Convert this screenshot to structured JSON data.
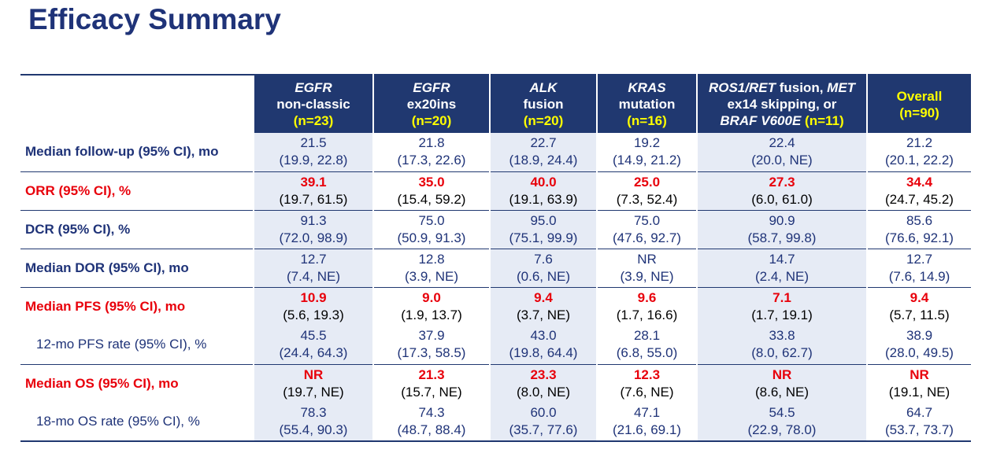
{
  "title": "Efficacy Summary",
  "columns": [
    {
      "lines": [
        {
          "t": "EGFR",
          "italic": true
        },
        {
          "t": "non-classic"
        }
      ],
      "n": "(n=23)"
    },
    {
      "lines": [
        {
          "t": "EGFR",
          "italic": true
        },
        {
          "t": "ex20ins"
        }
      ],
      "n": "(n=20)"
    },
    {
      "lines": [
        {
          "t": "ALK",
          "italic": true
        },
        {
          "t": "fusion"
        }
      ],
      "n": "(n=20)"
    },
    {
      "lines": [
        {
          "t": "KRAS",
          "italic": true
        },
        {
          "t": "mutation"
        }
      ],
      "n": "(n=16)"
    },
    {
      "lines": [
        {
          "t": "ROS1/RET",
          "italic": true,
          "suffix": " fusion, ",
          "suffix2": "MET",
          "suffix2italic": true
        },
        {
          "t": "ex14 skipping, or"
        },
        {
          "t": "BRAF V600E",
          "italic": true,
          "n": true
        }
      ],
      "n": "(n=11)"
    },
    {
      "lines": [
        {
          "t": "Overall",
          "yellow": true
        }
      ],
      "n": "(n=90)"
    }
  ],
  "rows": [
    {
      "label": "Median follow-up (95% CI), mo",
      "style": "bold",
      "highlight": false,
      "cells": [
        [
          "21.5",
          "(19.9, 22.8)"
        ],
        [
          "21.8",
          "(17.3, 22.6)"
        ],
        [
          "22.7",
          "(18.9, 24.4)"
        ],
        [
          "19.2",
          "(14.9, 21.2)"
        ],
        [
          "22.4",
          "(20.0, NE)"
        ],
        [
          "21.2",
          "(20.1, 22.2)"
        ]
      ]
    },
    {
      "label": "ORR (95% CI), %",
      "style": "bold",
      "highlight": true,
      "cells": [
        [
          "39.1",
          "(19.7, 61.5)"
        ],
        [
          "35.0",
          "(15.4, 59.2)"
        ],
        [
          "40.0",
          "(19.1, 63.9)"
        ],
        [
          "25.0",
          "(7.3, 52.4)"
        ],
        [
          "27.3",
          "(6.0, 61.0)"
        ],
        [
          "34.4",
          "(24.7, 45.2)"
        ]
      ]
    },
    {
      "label": "DCR (95% CI), %",
      "style": "bold",
      "highlight": false,
      "cells": [
        [
          "91.3",
          "(72.0, 98.9)"
        ],
        [
          "75.0",
          "(50.9, 91.3)"
        ],
        [
          "95.0",
          "(75.1, 99.9)"
        ],
        [
          "75.0",
          "(47.6, 92.7)"
        ],
        [
          "90.9",
          "(58.7, 99.8)"
        ],
        [
          "85.6",
          "(76.6, 92.1)"
        ]
      ]
    },
    {
      "label": "Median DOR (95% CI), mo",
      "style": "bold",
      "highlight": false,
      "cells": [
        [
          "12.7",
          "(7.4, NE)"
        ],
        [
          "12.8",
          "(3.9, NE)"
        ],
        [
          "7.6",
          "(0.6, NE)"
        ],
        [
          "NR",
          "(3.9, NE)"
        ],
        [
          "14.7",
          "(2.4, NE)"
        ],
        [
          "12.7",
          "(7.6, 14.9)"
        ]
      ]
    },
    {
      "label": "Median PFS (95% CI), mo",
      "style": "bold",
      "highlight": true,
      "cells": [
        [
          "10.9",
          "(5.6, 19.3)"
        ],
        [
          "9.0",
          "(1.9, 13.7)"
        ],
        [
          "9.4",
          "(3.7, NE)"
        ],
        [
          "9.6",
          "(1.7, 16.6)"
        ],
        [
          "7.1",
          "(1.7, 19.1)"
        ],
        [
          "9.4",
          "(5.7, 11.5)"
        ]
      ]
    },
    {
      "label": "12-mo PFS rate (95% CI), %",
      "style": "sub",
      "highlight": false,
      "cells": [
        [
          "45.5",
          "(24.4, 64.3)"
        ],
        [
          "37.9",
          "(17.3, 58.5)"
        ],
        [
          "43.0",
          "(19.8, 64.4)"
        ],
        [
          "28.1",
          "(6.8, 55.0)"
        ],
        [
          "33.8",
          "(8.0, 62.7)"
        ],
        [
          "38.9",
          "(28.0, 49.5)"
        ]
      ]
    },
    {
      "label": "Median OS (95% CI), mo",
      "style": "bold",
      "highlight": true,
      "cells": [
        [
          "NR",
          "(19.7, NE)"
        ],
        [
          "21.3",
          "(15.7, NE)"
        ],
        [
          "23.3",
          "(8.0, NE)"
        ],
        [
          "12.3",
          "(7.6, NE)"
        ],
        [
          "NR",
          "(8.6, NE)"
        ],
        [
          "NR",
          "(19.1, NE)"
        ]
      ]
    },
    {
      "label": "18-mo OS rate (95% CI), %",
      "style": "sub",
      "highlight": false,
      "cells": [
        [
          "78.3",
          "(55.4, 90.3)"
        ],
        [
          "74.3",
          "(48.7, 88.4)"
        ],
        [
          "60.0",
          "(35.7, 77.6)"
        ],
        [
          "47.1",
          "(21.6, 69.1)"
        ],
        [
          "54.5",
          "(22.9, 78.0)"
        ],
        [
          "64.7",
          "(53.7, 73.7)"
        ]
      ]
    }
  ],
  "colors": {
    "header_bg": "#203870",
    "title": "#1F3378",
    "highlight": "#E8000B",
    "n_label": "#FFFF00",
    "shade": "#E6EBF5"
  }
}
